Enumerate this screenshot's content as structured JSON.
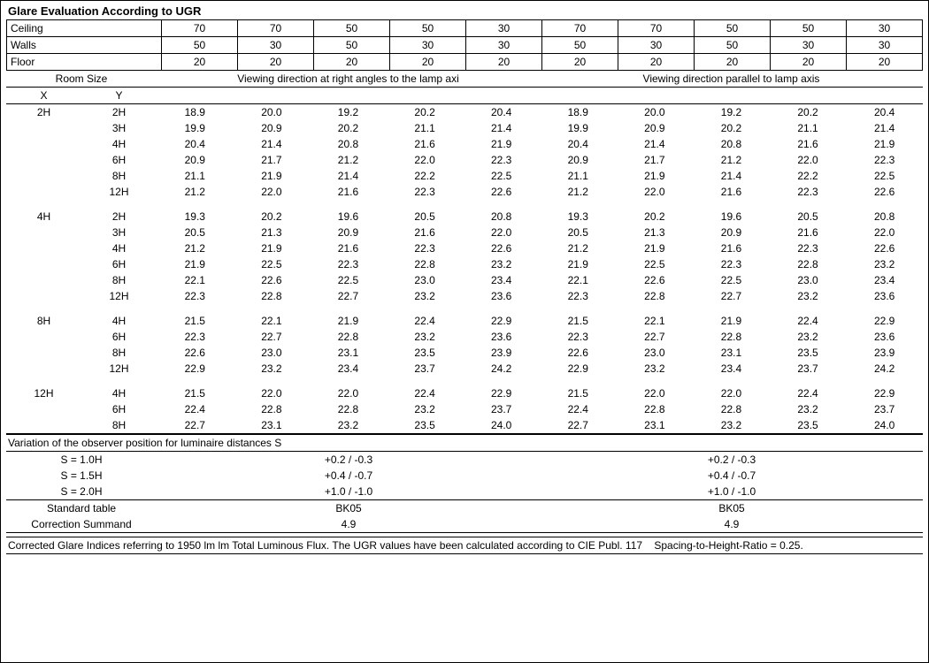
{
  "title": "Glare Evaluation According to UGR",
  "header_rows": [
    {
      "label": "Ceiling",
      "v": [
        "70",
        "70",
        "50",
        "50",
        "30",
        "70",
        "70",
        "50",
        "50",
        "30"
      ]
    },
    {
      "label": "Walls",
      "v": [
        "50",
        "30",
        "50",
        "30",
        "30",
        "50",
        "30",
        "50",
        "30",
        "30"
      ]
    },
    {
      "label": "Floor",
      "v": [
        "20",
        "20",
        "20",
        "20",
        "20",
        "20",
        "20",
        "20",
        "20",
        "20"
      ]
    }
  ],
  "room_size_label": "Room Size",
  "axis_x": "X",
  "axis_y": "Y",
  "dir_left": "Viewing direction at right angles to the lamp axi",
  "dir_right": "Viewing direction parallel to lamp axis",
  "groups": [
    {
      "x": "2H",
      "rows": [
        {
          "y": "2H",
          "a": [
            "18.9",
            "20.0",
            "19.2",
            "20.2",
            "20.4"
          ],
          "b": [
            "18.9",
            "20.0",
            "19.2",
            "20.2",
            "20.4"
          ]
        },
        {
          "y": "3H",
          "a": [
            "19.9",
            "20.9",
            "20.2",
            "21.1",
            "21.4"
          ],
          "b": [
            "19.9",
            "20.9",
            "20.2",
            "21.1",
            "21.4"
          ]
        },
        {
          "y": "4H",
          "a": [
            "20.4",
            "21.4",
            "20.8",
            "21.6",
            "21.9"
          ],
          "b": [
            "20.4",
            "21.4",
            "20.8",
            "21.6",
            "21.9"
          ]
        },
        {
          "y": "6H",
          "a": [
            "20.9",
            "21.7",
            "21.2",
            "22.0",
            "22.3"
          ],
          "b": [
            "20.9",
            "21.7",
            "21.2",
            "22.0",
            "22.3"
          ]
        },
        {
          "y": "8H",
          "a": [
            "21.1",
            "21.9",
            "21.4",
            "22.2",
            "22.5"
          ],
          "b": [
            "21.1",
            "21.9",
            "21.4",
            "22.2",
            "22.5"
          ]
        },
        {
          "y": "12H",
          "a": [
            "21.2",
            "22.0",
            "21.6",
            "22.3",
            "22.6"
          ],
          "b": [
            "21.2",
            "22.0",
            "21.6",
            "22.3",
            "22.6"
          ]
        }
      ]
    },
    {
      "x": "4H",
      "rows": [
        {
          "y": "2H",
          "a": [
            "19.3",
            "20.2",
            "19.6",
            "20.5",
            "20.8"
          ],
          "b": [
            "19.3",
            "20.2",
            "19.6",
            "20.5",
            "20.8"
          ]
        },
        {
          "y": "3H",
          "a": [
            "20.5",
            "21.3",
            "20.9",
            "21.6",
            "22.0"
          ],
          "b": [
            "20.5",
            "21.3",
            "20.9",
            "21.6",
            "22.0"
          ]
        },
        {
          "y": "4H",
          "a": [
            "21.2",
            "21.9",
            "21.6",
            "22.3",
            "22.6"
          ],
          "b": [
            "21.2",
            "21.9",
            "21.6",
            "22.3",
            "22.6"
          ]
        },
        {
          "y": "6H",
          "a": [
            "21.9",
            "22.5",
            "22.3",
            "22.8",
            "23.2"
          ],
          "b": [
            "21.9",
            "22.5",
            "22.3",
            "22.8",
            "23.2"
          ]
        },
        {
          "y": "8H",
          "a": [
            "22.1",
            "22.6",
            "22.5",
            "23.0",
            "23.4"
          ],
          "b": [
            "22.1",
            "22.6",
            "22.5",
            "23.0",
            "23.4"
          ]
        },
        {
          "y": "12H",
          "a": [
            "22.3",
            "22.8",
            "22.7",
            "23.2",
            "23.6"
          ],
          "b": [
            "22.3",
            "22.8",
            "22.7",
            "23.2",
            "23.6"
          ]
        }
      ]
    },
    {
      "x": "8H",
      "rows": [
        {
          "y": "4H",
          "a": [
            "21.5",
            "22.1",
            "21.9",
            "22.4",
            "22.9"
          ],
          "b": [
            "21.5",
            "22.1",
            "21.9",
            "22.4",
            "22.9"
          ]
        },
        {
          "y": "6H",
          "a": [
            "22.3",
            "22.7",
            "22.8",
            "23.2",
            "23.6"
          ],
          "b": [
            "22.3",
            "22.7",
            "22.8",
            "23.2",
            "23.6"
          ]
        },
        {
          "y": "8H",
          "a": [
            "22.6",
            "23.0",
            "23.1",
            "23.5",
            "23.9"
          ],
          "b": [
            "22.6",
            "23.0",
            "23.1",
            "23.5",
            "23.9"
          ]
        },
        {
          "y": "12H",
          "a": [
            "22.9",
            "23.2",
            "23.4",
            "23.7",
            "24.2"
          ],
          "b": [
            "22.9",
            "23.2",
            "23.4",
            "23.7",
            "24.2"
          ]
        }
      ]
    },
    {
      "x": "12H",
      "rows": [
        {
          "y": "4H",
          "a": [
            "21.5",
            "22.0",
            "22.0",
            "22.4",
            "22.9"
          ],
          "b": [
            "21.5",
            "22.0",
            "22.0",
            "22.4",
            "22.9"
          ]
        },
        {
          "y": "6H",
          "a": [
            "22.4",
            "22.8",
            "22.8",
            "23.2",
            "23.7"
          ],
          "b": [
            "22.4",
            "22.8",
            "22.8",
            "23.2",
            "23.7"
          ]
        },
        {
          "y": "8H",
          "a": [
            "22.7",
            "23.1",
            "23.2",
            "23.5",
            "24.0"
          ],
          "b": [
            "22.7",
            "23.1",
            "23.2",
            "23.5",
            "24.0"
          ]
        }
      ]
    }
  ],
  "observer_title": "Variation of the observer position for luminaire distances S",
  "observer_rows": [
    {
      "l": "S = 1.0H",
      "a": "+0.2 / -0.3",
      "b": "+0.2 / -0.3"
    },
    {
      "l": "S = 1.5H",
      "a": "+0.4 / -0.7",
      "b": "+0.4 / -0.7"
    },
    {
      "l": "S = 2.0H",
      "a": "+1.0 / -1.0",
      "b": "+1.0 / -1.0"
    }
  ],
  "std_table": "Standard table",
  "std_val": "BK05",
  "corr_label": "Correction Summand",
  "corr_val": "4.9",
  "footnote": "Corrected Glare Indices referring to 1950 lm lm Total Luminous Flux. The UGR values have been calculated according to CIE Publ. 117    Spacing-to-Height-Ratio = 0.25."
}
